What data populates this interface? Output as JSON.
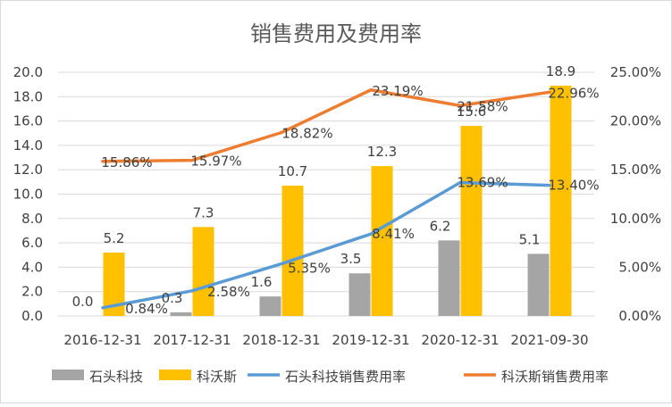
{
  "chart_data": {
    "type": "bar+line",
    "title": "销售费用及费用率",
    "categories": [
      "2016-12-31",
      "2017-12-31",
      "2018-12-31",
      "2019-12-31",
      "2020-12-31",
      "2021-09-30"
    ],
    "bar_series": [
      {
        "name": "石头科技",
        "color": "#A5A5A5",
        "values": [
          0.0,
          0.3,
          1.6,
          3.5,
          6.2,
          5.1
        ],
        "labels": [
          "0.0",
          "0.3",
          "1.6",
          "3.5",
          "6.2",
          "5.1"
        ]
      },
      {
        "name": "科沃斯",
        "color": "#FFC000",
        "values": [
          5.2,
          7.3,
          10.7,
          12.3,
          15.6,
          18.9
        ],
        "labels": [
          "5.2",
          "7.3",
          "10.7",
          "12.3",
          "15.6",
          "18.9"
        ]
      }
    ],
    "line_series": [
      {
        "name": "石头科技销售费用率",
        "color": "#5B9BD5",
        "values": [
          0.84,
          2.58,
          5.35,
          8.41,
          13.69,
          13.4
        ],
        "labels": [
          "0.84%",
          "2.58%",
          "5.35%",
          "8.41%",
          "13.69%",
          "13.40%"
        ]
      },
      {
        "name": "科沃斯销售费用率",
        "color": "#ED7D31",
        "values": [
          15.86,
          15.97,
          18.82,
          23.19,
          21.58,
          22.96
        ],
        "labels": [
          "15.86%",
          "15.97%",
          "18.82%",
          "23.19%",
          "21.58%",
          "22.96%"
        ]
      }
    ],
    "y_left": {
      "min": 0,
      "max": 20,
      "ticks": [
        "0.0",
        "2.0",
        "4.0",
        "6.0",
        "8.0",
        "10.0",
        "12.0",
        "14.0",
        "16.0",
        "18.0",
        "20.0"
      ]
    },
    "y_right": {
      "min": 0,
      "max": 25,
      "ticks": [
        "0.00%",
        "5.00%",
        "10.00%",
        "15.00%",
        "20.00%",
        "25.00%"
      ]
    },
    "gridlines": true,
    "legend_position": "bottom"
  }
}
